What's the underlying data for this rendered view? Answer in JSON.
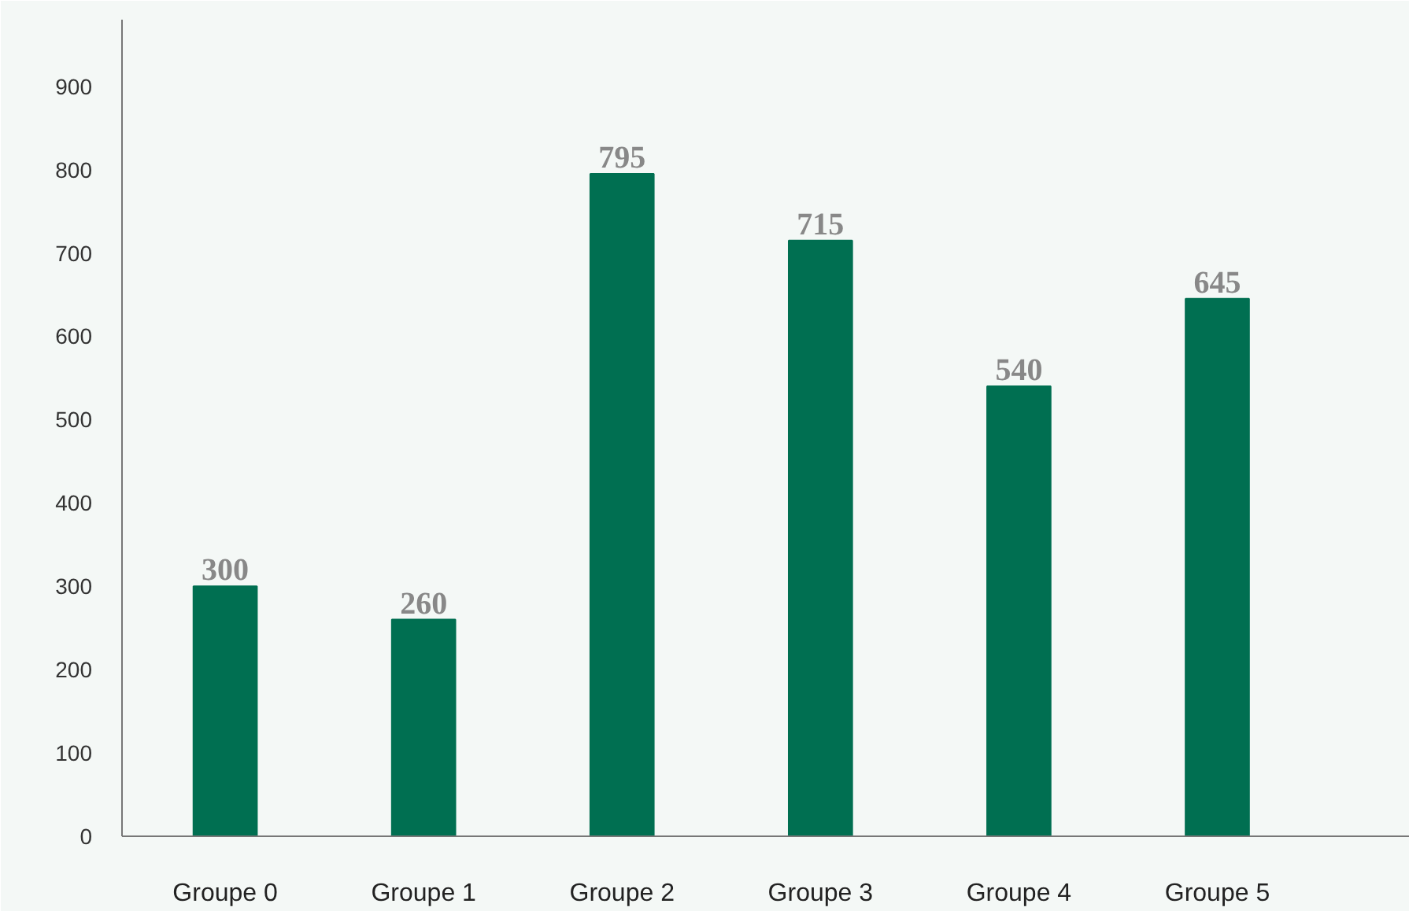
{
  "chart_data": {
    "type": "bar",
    "categories": [
      "Groupe 0",
      "Groupe 1",
      "Groupe 2",
      "Groupe 3",
      "Groupe 4",
      "Groupe 5"
    ],
    "values": [
      300,
      260,
      795,
      715,
      540,
      645
    ],
    "color": "#006f51",
    "ylim": [
      0,
      980
    ],
    "yticks": [
      0,
      100,
      200,
      300,
      400,
      500,
      600,
      700,
      800,
      900
    ],
    "grid": false,
    "data_labels": true
  }
}
